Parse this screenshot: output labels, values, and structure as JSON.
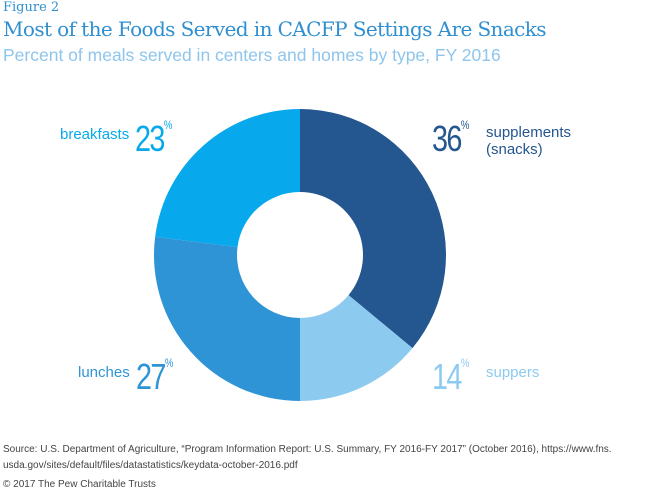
{
  "chart_data": {
    "type": "pie",
    "figure_label": "Figure 2",
    "title": "Most of the Foods Served in CACFP Settings Are Snacks",
    "subtitle": "Percent of meals served in centers and homes by type, FY 2016",
    "slices": [
      {
        "label": "supplements",
        "label2": "(snacks)",
        "value": 36,
        "color": "#245690"
      },
      {
        "label": "suppers",
        "value": 14,
        "color": "#8dcaf0"
      },
      {
        "label": "lunches",
        "value": 27,
        "color": "#2f94d6"
      },
      {
        "label": "breakfasts",
        "value": 23,
        "color": "#08a9ec"
      }
    ],
    "unit": "%"
  },
  "footer": {
    "source_line1": "Source: U.S. Department of Agriculture, “Program Information Report: U.S. Summary, FY 2016-FY 2017” (October 2016), https://www.fns.",
    "source_line2": "usda.gov/sites/default/files/datastatistics/keydata-october-2016.pdf",
    "copyright": "© 2017 The Pew Charitable Trusts"
  }
}
